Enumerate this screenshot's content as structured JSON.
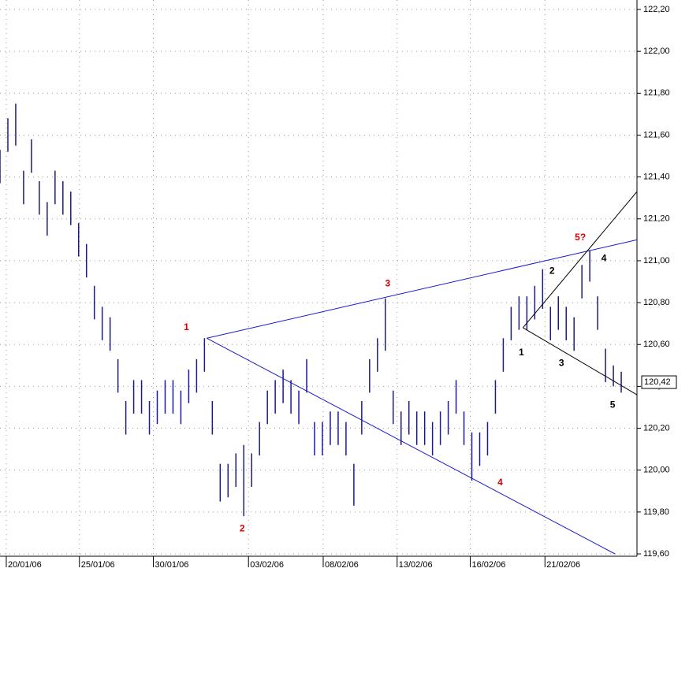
{
  "chart_data": {
    "type": "ohlc",
    "color": "#1a1a8c",
    "x": [
      0,
      1,
      2,
      3,
      4,
      5,
      6,
      7,
      8,
      9,
      10,
      11,
      12,
      13,
      14,
      15,
      16,
      17,
      18,
      19,
      20,
      21,
      22,
      23,
      24,
      25,
      26,
      27,
      28,
      29,
      30,
      31,
      32,
      33,
      34,
      35,
      36,
      37,
      38,
      39,
      40,
      41,
      42,
      43,
      44,
      45,
      46,
      47,
      48,
      49,
      50,
      51,
      52,
      53,
      54,
      55,
      56,
      57,
      58,
      59,
      60,
      61,
      62,
      63,
      64,
      65,
      66,
      67,
      68,
      69,
      70,
      71,
      72,
      73,
      74,
      75,
      76,
      77,
      78,
      79
    ],
    "high": [
      121.53,
      121.68,
      121.75,
      121.43,
      121.58,
      121.38,
      121.28,
      121.43,
      121.38,
      121.33,
      121.18,
      121.08,
      120.88,
      120.78,
      120.73,
      120.53,
      120.33,
      120.43,
      120.43,
      120.33,
      120.38,
      120.43,
      120.43,
      120.38,
      120.48,
      120.53,
      120.63,
      120.33,
      120.03,
      120.03,
      120.08,
      120.12,
      120.08,
      120.23,
      120.38,
      120.43,
      120.48,
      120.43,
      120.38,
      120.53,
      120.23,
      120.23,
      120.28,
      120.28,
      120.23,
      120.03,
      120.33,
      120.53,
      120.63,
      120.82,
      120.38,
      120.28,
      120.33,
      120.28,
      120.28,
      120.23,
      120.28,
      120.33,
      120.43,
      120.28,
      120.18,
      120.18,
      120.23,
      120.43,
      120.63,
      120.78,
      120.83,
      120.83,
      120.88,
      120.96,
      120.78,
      120.83,
      120.78,
      120.73,
      120.98,
      121.05,
      120.83,
      120.58,
      120.5,
      120.47
    ],
    "low": [
      121.37,
      121.52,
      121.55,
      121.27,
      121.42,
      121.22,
      121.12,
      121.27,
      121.22,
      121.17,
      121.02,
      120.92,
      120.72,
      120.62,
      120.57,
      120.37,
      120.17,
      120.27,
      120.27,
      120.17,
      120.22,
      120.27,
      120.27,
      120.22,
      120.32,
      120.37,
      120.47,
      120.17,
      119.85,
      119.87,
      119.92,
      119.78,
      119.92,
      120.07,
      120.22,
      120.27,
      120.32,
      120.27,
      120.22,
      120.37,
      120.07,
      120.07,
      120.12,
      120.12,
      120.07,
      119.83,
      120.17,
      120.37,
      120.47,
      120.57,
      120.22,
      120.12,
      120.17,
      120.12,
      120.12,
      120.07,
      120.12,
      120.17,
      120.27,
      120.12,
      119.95,
      120.02,
      120.07,
      120.27,
      120.47,
      120.62,
      120.67,
      120.67,
      120.72,
      120.77,
      120.62,
      120.67,
      120.62,
      120.57,
      120.82,
      120.9,
      120.67,
      120.42,
      120.4,
      120.37
    ],
    "last_value": 120.42,
    "last_label": "120,42",
    "xlim": [
      0,
      81
    ],
    "ylim": [
      119.6,
      122.2
    ],
    "xticks": [
      {
        "value": 0.8,
        "label": "20/01/06"
      },
      {
        "value": 10.1,
        "label": "25/01/06"
      },
      {
        "value": 19.5,
        "label": "30/01/06"
      },
      {
        "value": 31.6,
        "label": "03/02/06"
      },
      {
        "value": 41.1,
        "label": "08/02/06"
      },
      {
        "value": 50.5,
        "label": "13/02/06"
      },
      {
        "value": 59.8,
        "label": "16/02/06"
      },
      {
        "value": 69.3,
        "label": "21/02/06"
      }
    ],
    "yticks": [
      {
        "value": 119.6,
        "label": "119,60"
      },
      {
        "value": 119.8,
        "label": "119,80"
      },
      {
        "value": 120,
        "label": "120,00"
      },
      {
        "value": 120.2,
        "label": "120,20"
      },
      {
        "value": 120.4,
        "label": "120,40"
      },
      {
        "value": 120.6,
        "label": "120,60"
      },
      {
        "value": 120.8,
        "label": "120,80"
      },
      {
        "value": 121,
        "label": "121,00"
      },
      {
        "value": 121.2,
        "label": "121,20"
      },
      {
        "value": 121.4,
        "label": "121,40"
      },
      {
        "value": 121.6,
        "label": "121,60"
      },
      {
        "value": 121.8,
        "label": "121,80"
      },
      {
        "value": 122,
        "label": "122,00"
      },
      {
        "value": 122.2,
        "label": "122,20"
      }
    ],
    "grid": true,
    "trendlines": [
      {
        "color": "#1a1acc",
        "x": [
          26.3,
          81
        ],
        "y": [
          120.63,
          121.1
        ]
      },
      {
        "color": "#1a1acc",
        "x": [
          26.3,
          78.2
        ],
        "y": [
          120.63,
          119.6
        ]
      },
      {
        "color": "#000000",
        "x": [
          66.5,
          81
        ],
        "y": [
          120.68,
          121.33
        ]
      },
      {
        "color": "#000000",
        "x": [
          66.5,
          81
        ],
        "y": [
          120.68,
          120.36
        ]
      }
    ],
    "annotations": [
      {
        "text": "1",
        "x": 23.7,
        "y": 120.68,
        "color": "#dd0000"
      },
      {
        "text": "2",
        "x": 30.8,
        "y": 119.72,
        "color": "#dd0000"
      },
      {
        "text": "3",
        "x": 49.3,
        "y": 120.89,
        "color": "#dd0000"
      },
      {
        "text": "4",
        "x": 63.6,
        "y": 119.94,
        "color": "#dd0000"
      },
      {
        "text": "5?",
        "x": 73.8,
        "y": 121.11,
        "color": "#dd0000"
      },
      {
        "text": "1",
        "x": 66.3,
        "y": 120.56,
        "color": "#000000"
      },
      {
        "text": "2",
        "x": 70.2,
        "y": 120.95,
        "color": "#000000"
      },
      {
        "text": "3",
        "x": 71.4,
        "y": 120.51,
        "color": "#000000"
      },
      {
        "text": "4",
        "x": 76.8,
        "y": 121.01,
        "color": "#000000"
      },
      {
        "text": "5",
        "x": 77.9,
        "y": 120.31,
        "color": "#000000"
      }
    ]
  }
}
